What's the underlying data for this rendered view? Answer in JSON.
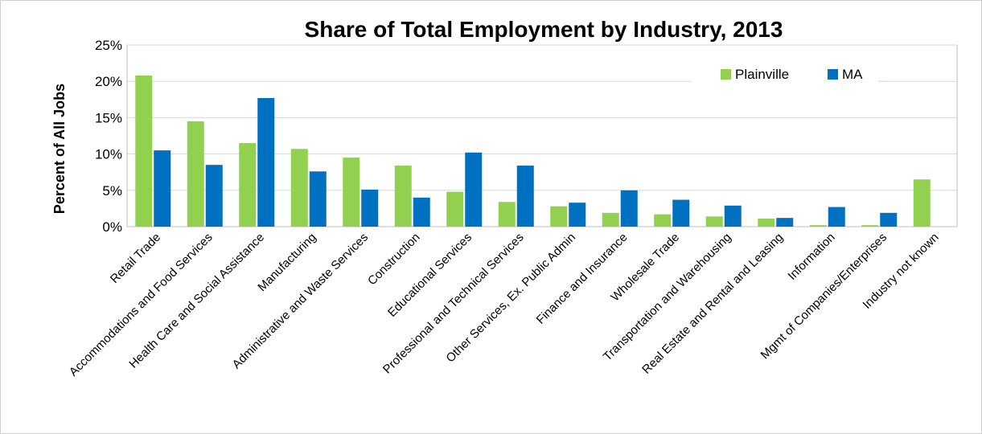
{
  "chart_data": {
    "type": "bar",
    "title": "Share of Total Employment by Industry, 2013",
    "ylabel": "Percent of All Jobs",
    "xlabel": "",
    "ylim": [
      0,
      25
    ],
    "yticks": [
      0,
      5,
      10,
      15,
      20,
      25
    ],
    "ytick_labels": [
      "0%",
      "5%",
      "10%",
      "15%",
      "20%",
      "25%"
    ],
    "grid": true,
    "legend_position": "top-right",
    "categories": [
      "Retail Trade",
      "Accommodations and Food Services",
      "Health Care and Social Assistance",
      "Manufacturing",
      "Administrative and Waste Services",
      "Construction",
      "Educational Services",
      "Professional and Technical Services",
      "Other Services, Ex. Public Admin",
      "Finance and Insurance",
      "Wholesale Trade",
      "Transportation and Warehousing",
      "Real Estate and Rental and Leasing",
      "Information",
      "Mgmt of Companies/Enterprises",
      "Industry not known"
    ],
    "series": [
      {
        "name": "Plainville",
        "color": "#92d050",
        "values": [
          20.8,
          14.5,
          11.5,
          10.7,
          9.5,
          8.4,
          4.8,
          3.4,
          2.8,
          1.9,
          1.7,
          1.4,
          1.1,
          0.2,
          0.2,
          6.5
        ]
      },
      {
        "name": "MA",
        "color": "#0070c0",
        "values": [
          10.5,
          8.5,
          17.7,
          7.6,
          5.1,
          4.0,
          10.2,
          8.4,
          3.3,
          5.0,
          3.7,
          2.9,
          1.2,
          2.7,
          1.9,
          0
        ]
      }
    ]
  }
}
